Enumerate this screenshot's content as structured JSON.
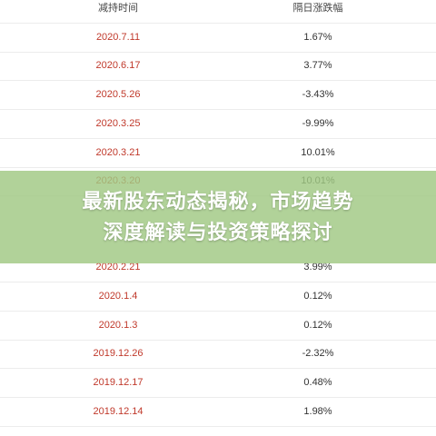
{
  "table": {
    "header": [
      "减持时间",
      "隔日涨跌幅"
    ],
    "rows": [
      [
        "2020.7.11",
        "1.67%"
      ],
      [
        "2020.6.17",
        "3.77%"
      ],
      [
        "2020.5.26",
        "-3.43%"
      ],
      [
        "2020.3.25",
        "-9.99%"
      ],
      [
        "2020.3.21",
        "10.01%"
      ],
      [
        "2020.3.20",
        "10.01%"
      ],
      [
        "2020.2.21",
        "3.99%"
      ],
      [
        "2020.1.4",
        "0.12%"
      ],
      [
        "2020.1.3",
        "0.12%"
      ],
      [
        "2019.12.26",
        "-2.32%"
      ],
      [
        "2019.12.17",
        "0.48%"
      ],
      [
        "2019.12.14",
        "1.98%"
      ]
    ]
  },
  "banner": {
    "lines": [
      "最新股东动态揭秘，市场趋势",
      "深度解读与投资策略探讨"
    ]
  }
}
